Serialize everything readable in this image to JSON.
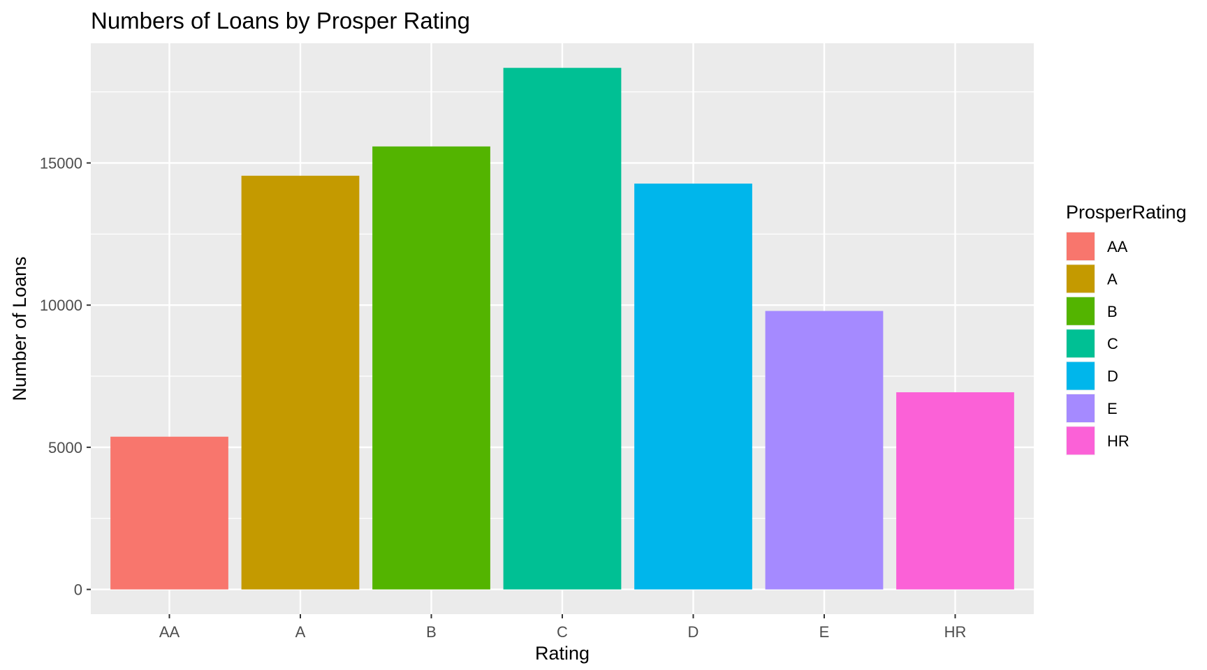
{
  "chart_data": {
    "type": "bar",
    "title": "Numbers of Loans by Prosper Rating",
    "xlabel": "Rating",
    "ylabel": "Number of Loans",
    "categories": [
      "AA",
      "A",
      "B",
      "C",
      "D",
      "E",
      "HR"
    ],
    "values": [
      5372,
      14551,
      15581,
      18345,
      14274,
      9795,
      6935
    ],
    "colors": [
      "#F8766D",
      "#C49A00",
      "#53B400",
      "#00C094",
      "#00B6EB",
      "#A58AFF",
      "#FB61D7"
    ],
    "ylim": [
      -870,
      19210
    ],
    "yticks": [
      0,
      5000,
      10000,
      15000
    ],
    "ytick_labels": [
      "0",
      "5000",
      "10000",
      "15000"
    ],
    "grid": true,
    "panel_background": "#EBEBEB",
    "legend": {
      "title": "ProsperRating",
      "position": "right",
      "entries": [
        "AA",
        "A",
        "B",
        "C",
        "D",
        "E",
        "HR"
      ]
    }
  }
}
